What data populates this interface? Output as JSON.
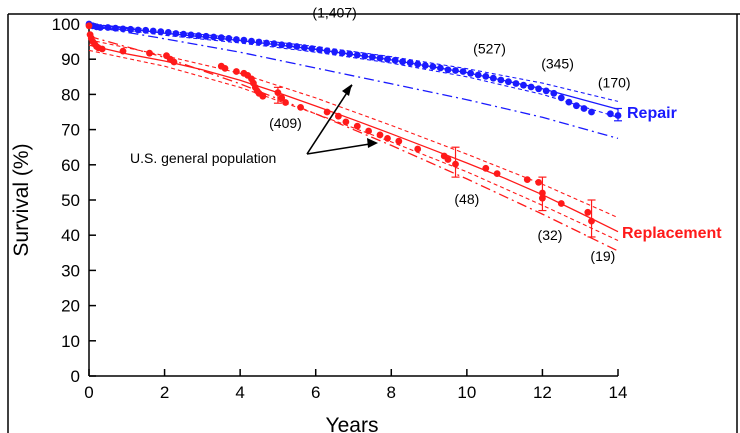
{
  "chart_data": {
    "type": "scatter",
    "title": "",
    "xlabel": "Years",
    "ylabel": "Survival (%)",
    "xlim": [
      0,
      14
    ],
    "ylim": [
      0,
      100
    ],
    "xticks": [
      "0",
      "2",
      "4",
      "6",
      "8",
      "10",
      "12",
      "14"
    ],
    "yticks": [
      "0",
      "10",
      "20",
      "30",
      "40",
      "50",
      "60",
      "70",
      "80",
      "90",
      "100"
    ],
    "grid": false,
    "colors": {
      "repair": "#1a1aff",
      "replacement": "#ff1a1a"
    },
    "series": [
      {
        "name": "Repair",
        "color": "#1a1aff",
        "points": [
          [
            0,
            100
          ],
          [
            0.1,
            99.5
          ],
          [
            0.2,
            99.2
          ],
          [
            0.3,
            99
          ],
          [
            0.5,
            99
          ],
          [
            0.7,
            98.8
          ],
          [
            0.9,
            98.6
          ],
          [
            1.1,
            98.5
          ],
          [
            1.3,
            98.3
          ],
          [
            1.5,
            98.2
          ],
          [
            1.7,
            98
          ],
          [
            1.9,
            97.8
          ],
          [
            2.1,
            97.6
          ],
          [
            2.3,
            97.3
          ],
          [
            2.5,
            97.1
          ],
          [
            2.7,
            96.9
          ],
          [
            2.9,
            96.7
          ],
          [
            3.1,
            96.5
          ],
          [
            3.3,
            96.3
          ],
          [
            3.5,
            96.1
          ],
          [
            3.7,
            95.9
          ],
          [
            3.9,
            95.6
          ],
          [
            4.1,
            95.4
          ],
          [
            4.3,
            95.1
          ],
          [
            4.5,
            94.9
          ],
          [
            4.7,
            94.6
          ],
          [
            4.9,
            94.4
          ],
          [
            5.1,
            94.1
          ],
          [
            5.3,
            93.9
          ],
          [
            5.5,
            93.6
          ],
          [
            5.7,
            93.3
          ],
          [
            5.9,
            93
          ],
          [
            6.1,
            92.7
          ],
          [
            6.3,
            92.4
          ],
          [
            6.5,
            92.1
          ],
          [
            6.7,
            91.8
          ],
          [
            6.9,
            91.5
          ],
          [
            7.1,
            91.2
          ],
          [
            7.3,
            90.9
          ],
          [
            7.5,
            90.6
          ],
          [
            7.7,
            90.3
          ],
          [
            7.9,
            90
          ],
          [
            8.1,
            89.7
          ],
          [
            8.3,
            89.3
          ],
          [
            8.5,
            89
          ],
          [
            8.7,
            88.6
          ],
          [
            8.9,
            88.2
          ],
          [
            9.1,
            87.9
          ],
          [
            9.3,
            87.5
          ],
          [
            9.5,
            87
          ],
          [
            9.7,
            86.8
          ],
          [
            9.9,
            86.5
          ],
          [
            10.1,
            86
          ],
          [
            10.3,
            85.5
          ],
          [
            10.5,
            85.1
          ],
          [
            10.7,
            84.6
          ],
          [
            10.9,
            84.1
          ],
          [
            11.1,
            83.6
          ],
          [
            11.3,
            83.1
          ],
          [
            11.5,
            82.6
          ],
          [
            11.7,
            82.1
          ],
          [
            11.9,
            81.6
          ],
          [
            12.1,
            81
          ],
          [
            12.3,
            80.3
          ],
          [
            12.5,
            79
          ],
          [
            12.7,
            77.8
          ],
          [
            12.9,
            76.8
          ],
          [
            13.1,
            76
          ],
          [
            13.3,
            75
          ],
          [
            13.8,
            74.5
          ],
          [
            14,
            74
          ]
        ],
        "fit": [
          [
            0,
            100
          ],
          [
            2,
            97.4
          ],
          [
            4,
            95.3
          ],
          [
            6,
            92.8
          ],
          [
            8,
            89.8
          ],
          [
            10,
            86.2
          ],
          [
            12,
            81.6
          ],
          [
            14,
            75.8
          ]
        ],
        "ci_lower": [
          [
            0,
            99.6
          ],
          [
            2,
            96.8
          ],
          [
            4,
            94.6
          ],
          [
            6,
            92
          ],
          [
            8,
            88.9
          ],
          [
            10,
            85
          ],
          [
            12,
            80
          ],
          [
            14,
            73.5
          ]
        ],
        "ci_upper": [
          [
            0,
            100
          ],
          [
            2,
            98
          ],
          [
            4,
            96
          ],
          [
            6,
            93.6
          ],
          [
            8,
            90.7
          ],
          [
            10,
            87.3
          ],
          [
            12,
            83.2
          ],
          [
            14,
            78
          ]
        ],
        "error_bars": [
          [
            14,
            72.5,
            76
          ]
        ]
      },
      {
        "name": "Replacement",
        "color": "#ff1a1a",
        "points": [
          [
            0,
            99.5
          ],
          [
            0.03,
            97
          ],
          [
            0.06,
            96
          ],
          [
            0.1,
            95
          ],
          [
            0.15,
            94.3
          ],
          [
            0.2,
            93.6
          ],
          [
            0.25,
            93.2
          ],
          [
            0.35,
            92.9
          ],
          [
            0.9,
            92.3
          ],
          [
            1.6,
            91.7
          ],
          [
            2.05,
            91
          ],
          [
            2.15,
            90
          ],
          [
            2.25,
            89.2
          ],
          [
            3.5,
            88
          ],
          [
            3.6,
            87.4
          ],
          [
            3.9,
            86.5
          ],
          [
            4.1,
            86
          ],
          [
            4.2,
            85.4
          ],
          [
            4.3,
            84.4
          ],
          [
            4.35,
            83.2
          ],
          [
            4.4,
            82
          ],
          [
            4.45,
            81
          ],
          [
            4.5,
            80.3
          ],
          [
            4.6,
            79.5
          ],
          [
            5,
            80.5
          ],
          [
            5.1,
            79
          ],
          [
            5.2,
            77.7
          ],
          [
            5.6,
            76.3
          ],
          [
            6.3,
            75
          ],
          [
            6.6,
            73.8
          ],
          [
            6.8,
            72.2
          ],
          [
            7.1,
            71
          ],
          [
            7.4,
            69.6
          ],
          [
            7.7,
            68.5
          ],
          [
            7.9,
            67.5
          ],
          [
            8.2,
            66.7
          ],
          [
            8.7,
            64.5
          ],
          [
            9.4,
            62.5
          ],
          [
            9.5,
            61.5
          ],
          [
            9.7,
            60.2
          ],
          [
            10.5,
            59
          ],
          [
            10.8,
            57.5
          ],
          [
            11.6,
            55.8
          ],
          [
            11.9,
            55
          ],
          [
            12,
            52
          ],
          [
            12,
            50.5
          ],
          [
            12.5,
            49
          ],
          [
            13.2,
            46.5
          ],
          [
            13.3,
            44
          ]
        ],
        "fit": [
          [
            0,
            94
          ],
          [
            1,
            91.5
          ],
          [
            2,
            89.5
          ],
          [
            3,
            87
          ],
          [
            4,
            84
          ],
          [
            5,
            80.5
          ],
          [
            6,
            76.7
          ],
          [
            7,
            72.8
          ],
          [
            8,
            68.8
          ],
          [
            9,
            64.7
          ],
          [
            10,
            60.5
          ],
          [
            11,
            56.2
          ],
          [
            12,
            51.5
          ],
          [
            13,
            46.3
          ],
          [
            14,
            41
          ]
        ],
        "ci_lower": [
          [
            0,
            92.5
          ],
          [
            2,
            88
          ],
          [
            4,
            82
          ],
          [
            6,
            74.5
          ],
          [
            8,
            66.5
          ],
          [
            10,
            58
          ],
          [
            12,
            48.5
          ],
          [
            14,
            38.5
          ]
        ],
        "ci_upper": [
          [
            0,
            95.5
          ],
          [
            2,
            91
          ],
          [
            4,
            86
          ],
          [
            6,
            79
          ],
          [
            8,
            71.2
          ],
          [
            10,
            63
          ],
          [
            12,
            54.5
          ],
          [
            14,
            45
          ]
        ],
        "error_bars": [
          [
            5,
            77.5,
            82
          ],
          [
            9.7,
            56.5,
            65
          ],
          [
            12,
            47,
            56.5
          ],
          [
            13.3,
            39.5,
            50
          ]
        ]
      }
    ],
    "reference_lines": [
      {
        "name": "U.S. general population (repair)",
        "color": "#1a1aff",
        "points": [
          [
            0,
            99.5
          ],
          [
            2,
            95.8
          ],
          [
            4,
            92
          ],
          [
            6,
            87.5
          ],
          [
            8,
            83
          ],
          [
            10,
            78.5
          ],
          [
            12,
            73.5
          ],
          [
            14,
            67.5
          ]
        ]
      },
      {
        "name": "U.S. general population (replacement)",
        "color": "#ff1a1a",
        "points": [
          [
            0,
            96.5
          ],
          [
            2,
            90.5
          ],
          [
            4,
            83
          ],
          [
            6,
            74.5
          ],
          [
            8,
            65.5
          ],
          [
            10,
            56
          ],
          [
            12,
            46
          ],
          [
            14,
            35.5
          ]
        ]
      }
    ],
    "count_labels": [
      {
        "text": "(1,407)",
        "x": 6.5,
        "y": 101.8
      },
      {
        "text": "(527)",
        "x": 10.6,
        "y": 91.6
      },
      {
        "text": "(345)",
        "x": 12.4,
        "y": 87.3
      },
      {
        "text": "(170)",
        "x": 13.9,
        "y": 82
      },
      {
        "text": "(409)",
        "x": 5.2,
        "y": 70.5
      },
      {
        "text": "(48)",
        "x": 10,
        "y": 48.8
      },
      {
        "text": "(32)",
        "x": 12.2,
        "y": 38.6
      },
      {
        "text": "(19)",
        "x": 13.6,
        "y": 32.6
      }
    ],
    "series_labels": {
      "repair": "Repair",
      "replacement": "Replacement"
    },
    "annotation": "U.S. general population"
  }
}
